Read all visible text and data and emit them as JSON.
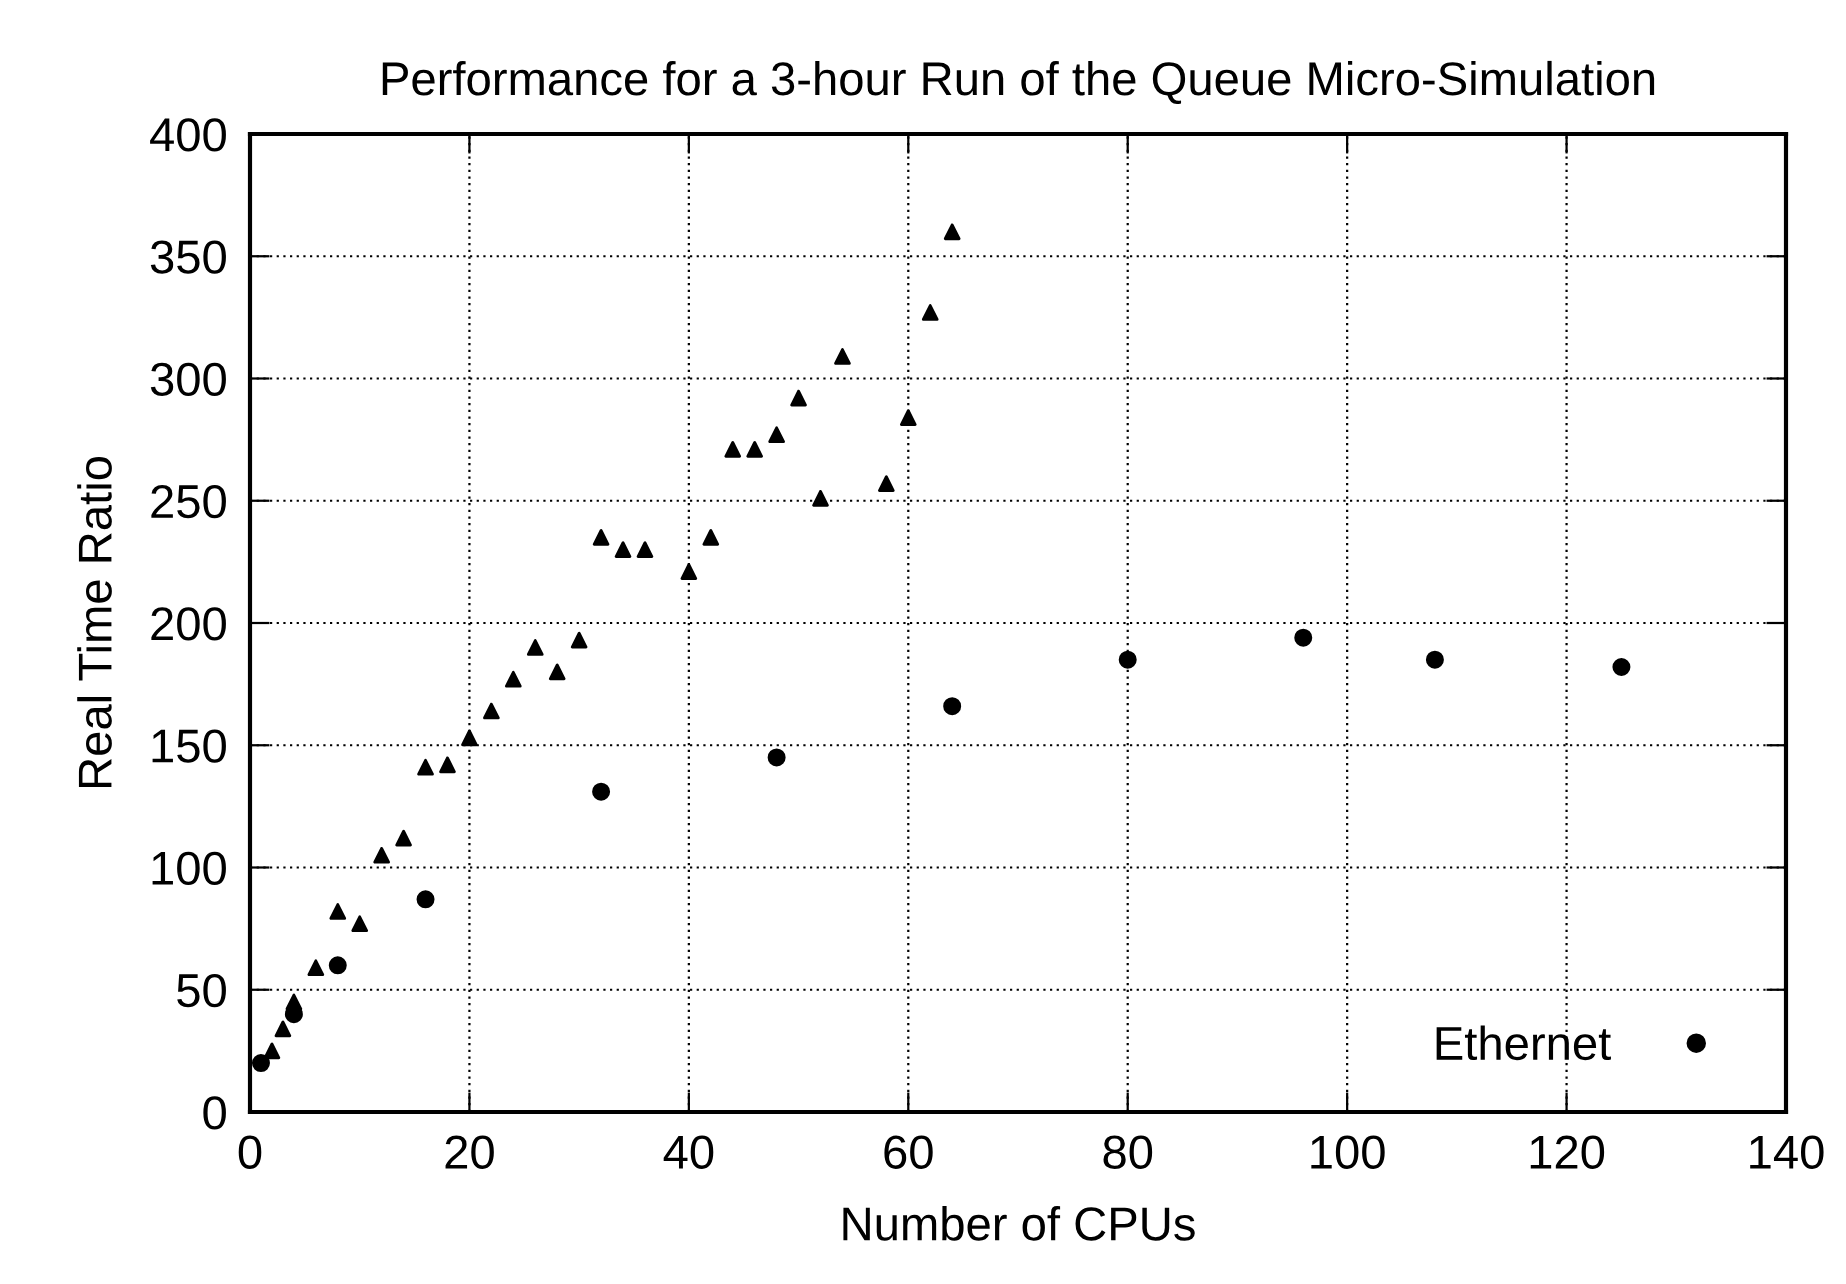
{
  "chart_data": {
    "type": "scatter",
    "title": "Performance for a 3-hour Run of the Queue Micro-Simulation",
    "xlabel": "Number of CPUs",
    "ylabel": "Real Time Ratio",
    "xlim": [
      0,
      140
    ],
    "xticks": [
      0,
      20,
      40,
      60,
      80,
      100,
      120,
      140
    ],
    "ylim": [
      0,
      400
    ],
    "yticks": [
      0,
      50,
      100,
      150,
      200,
      250,
      300,
      350,
      400
    ],
    "grid": true,
    "legend": "bottom right",
    "series": [
      {
        "name": "Ethernet",
        "color": "#000000",
        "marker": "circle",
        "x": [
          1,
          4,
          8,
          16,
          32,
          48,
          64,
          80,
          96,
          108,
          125
        ],
        "values": [
          20,
          40,
          60,
          87,
          131,
          145,
          166,
          185,
          194,
          185,
          182
        ]
      },
      {
        "color": "#000000",
        "marker": "triangle",
        "x": [
          2,
          3,
          4,
          6,
          8,
          10,
          12,
          14,
          16,
          18,
          20,
          22,
          24,
          26,
          28,
          30,
          32,
          34,
          36,
          40,
          42,
          44,
          46,
          48,
          50,
          52,
          54,
          58,
          60,
          62,
          64
        ],
        "values": [
          25,
          34,
          45,
          59,
          82,
          77,
          105,
          112,
          141,
          142,
          153,
          164,
          177,
          190,
          180,
          193,
          235,
          230,
          230,
          221,
          235,
          271,
          271,
          277,
          292,
          251,
          309,
          257,
          284,
          327,
          360
        ]
      }
    ]
  }
}
